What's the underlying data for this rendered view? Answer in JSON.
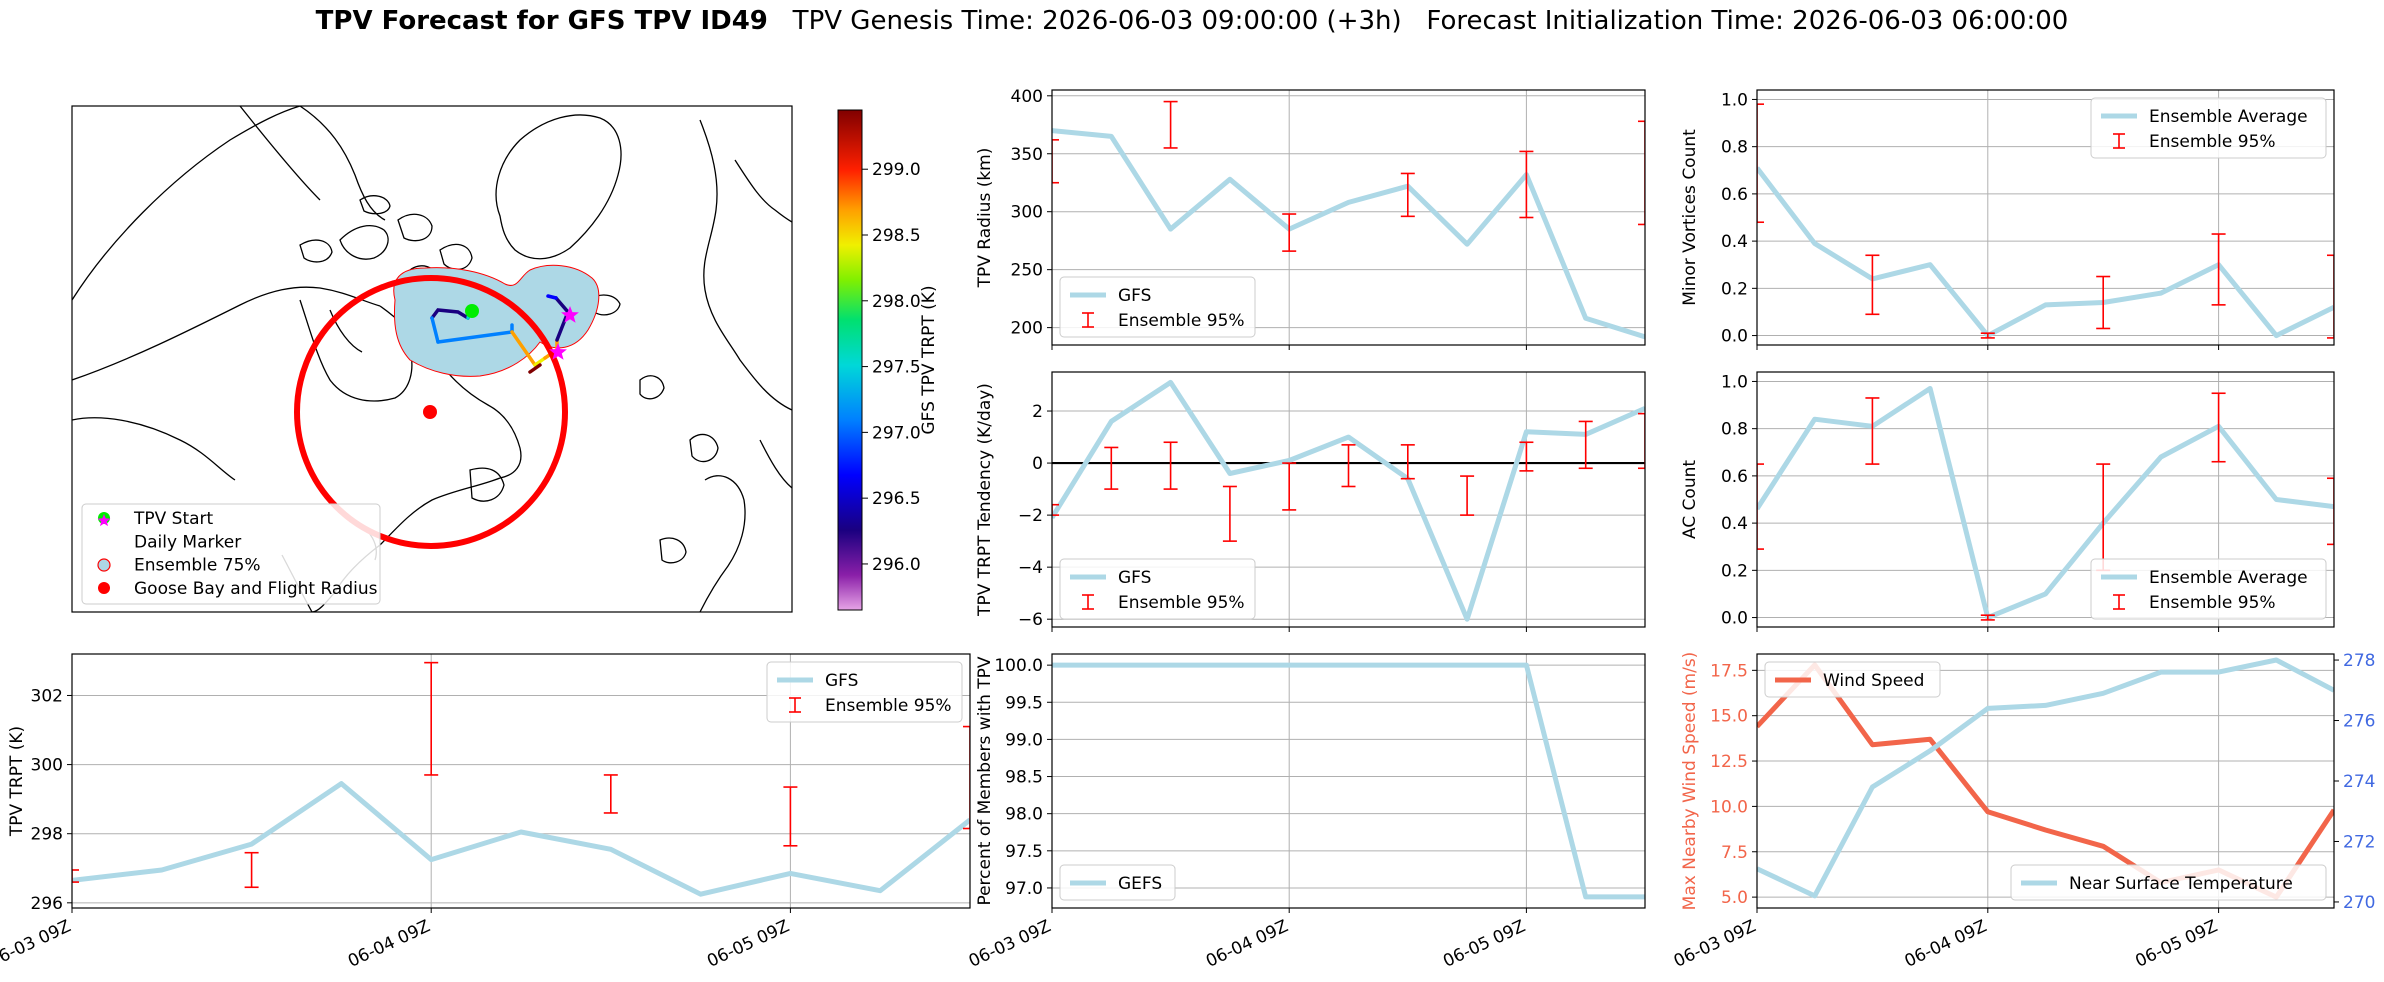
{
  "figure": {
    "title_bold": "TPV Forecast for GFS TPV ID49",
    "title_rest": "   TPV Genesis Time: 2026-06-03 09:00:00 (+3h)   Forecast Initialization Time: 2026-06-03 06:00:00"
  },
  "colors": {
    "ensemble_line": "#add8e6",
    "error_bar": "#ff0000",
    "wind": "#f2654a",
    "temp_axis": "#4169e1",
    "flight_circle": "#ff0000",
    "tpv_start": "#00ee00",
    "daily_marker": "#ff00ff"
  },
  "chart_data": [
    {
      "id": "map",
      "type": "map",
      "legend": [
        {
          "label": "TPV Start",
          "marker": "green-dot"
        },
        {
          "label": "Daily Marker",
          "marker": "magenta-star"
        },
        {
          "label": "Ensemble 75%",
          "marker": "hollow-circle"
        },
        {
          "label": "Goose Bay and Flight Radius",
          "marker": "red-dot"
        }
      ],
      "colorbar": {
        "label": "GFS TPV TRPT (K)",
        "ticks": [
          "299.0",
          "298.5",
          "298.0",
          "297.5",
          "297.0",
          "296.5",
          "296.0"
        ],
        "range": [
          295.65,
          299.45
        ]
      }
    },
    {
      "id": "radius",
      "type": "line",
      "ylabel": "TPV Radius (km)",
      "ylim": [
        185,
        405
      ],
      "yticks": [
        "200",
        "250",
        "300",
        "350",
        "400"
      ],
      "x": [
        0,
        1,
        2,
        3,
        4,
        5,
        6,
        7,
        8,
        9,
        10
      ],
      "series": [
        {
          "name": "GFS",
          "values": [
            370,
            365,
            285,
            328,
            285,
            308,
            322,
            272,
            332,
            208,
            192
          ]
        }
      ],
      "error_bars": [
        {
          "x": 0,
          "low": 325,
          "high": 362
        },
        {
          "x": 2,
          "low": 355,
          "high": 395
        },
        {
          "x": 4,
          "low": 266,
          "high": 298
        },
        {
          "x": 6,
          "low": 296,
          "high": 333
        },
        {
          "x": 8,
          "low": 295,
          "high": 352
        },
        {
          "x": 10,
          "low": 289,
          "high": 378
        }
      ],
      "legend": [
        "GFS",
        "Ensemble 95%"
      ],
      "legend_loc": "lower-left"
    },
    {
      "id": "minor",
      "type": "line",
      "ylabel": "Minor Vortices Count",
      "ylim": [
        -0.04,
        1.04
      ],
      "yticks": [
        "0.0",
        "0.2",
        "0.4",
        "0.6",
        "0.8",
        "1.0"
      ],
      "x": [
        0,
        1,
        2,
        3,
        4,
        5,
        6,
        7,
        8,
        9,
        10
      ],
      "series": [
        {
          "name": "Ensemble Average",
          "values": [
            0.71,
            0.39,
            0.24,
            0.3,
            0.0,
            0.13,
            0.14,
            0.18,
            0.3,
            0.0,
            0.12
          ]
        }
      ],
      "error_bars": [
        {
          "x": 0,
          "low": 0.48,
          "high": 0.98
        },
        {
          "x": 2,
          "low": 0.09,
          "high": 0.34
        },
        {
          "x": 4,
          "low": -0.01,
          "high": 0.01
        },
        {
          "x": 6,
          "low": 0.03,
          "high": 0.25
        },
        {
          "x": 8,
          "low": 0.13,
          "high": 0.43
        },
        {
          "x": 10,
          "low": -0.01,
          "high": 0.34
        }
      ],
      "legend": [
        "Ensemble Average",
        "Ensemble 95%"
      ],
      "legend_loc": "top-right"
    },
    {
      "id": "tendency",
      "type": "line",
      "ylabel": "TPV TRPT Tendency (K/day)",
      "ylim": [
        -6.3,
        3.5
      ],
      "yticks": [
        "−6",
        "−4",
        "−2",
        "0",
        "2"
      ],
      "zero_line": true,
      "x": [
        0,
        1,
        2,
        3,
        4,
        5,
        6,
        7,
        8,
        9,
        10
      ],
      "series": [
        {
          "name": "GFS",
          "values": [
            -2.1,
            1.6,
            3.1,
            -0.4,
            0.1,
            1.0,
            -0.6,
            -6.0,
            1.2,
            1.1,
            2.1
          ]
        }
      ],
      "error_bars": [
        {
          "x": 0,
          "low": -2.0,
          "high": -1.6
        },
        {
          "x": 1,
          "low": -1.0,
          "high": 0.6
        },
        {
          "x": 2,
          "low": -1.0,
          "high": 0.8
        },
        {
          "x": 3,
          "low": -3.0,
          "high": -0.9
        },
        {
          "x": 4,
          "low": -1.8,
          "high": 0.0
        },
        {
          "x": 5,
          "low": -0.9,
          "high": 0.7
        },
        {
          "x": 6,
          "low": -0.6,
          "high": 0.7
        },
        {
          "x": 7,
          "low": -2.0,
          "high": -0.5
        },
        {
          "x": 8,
          "low": -0.3,
          "high": 0.8
        },
        {
          "x": 9,
          "low": -0.2,
          "high": 1.6
        },
        {
          "x": 10,
          "low": -0.2,
          "high": 1.9
        }
      ],
      "legend": [
        "GFS",
        "Ensemble 95%"
      ],
      "legend_loc": "lower-left"
    },
    {
      "id": "ac",
      "type": "line",
      "ylabel": "AC Count",
      "ylim": [
        -0.04,
        1.04
      ],
      "yticks": [
        "0.0",
        "0.2",
        "0.4",
        "0.6",
        "0.8",
        "1.0"
      ],
      "x": [
        0,
        1,
        2,
        3,
        4,
        5,
        6,
        7,
        8,
        9,
        10
      ],
      "series": [
        {
          "name": "Ensemble Average",
          "values": [
            0.46,
            0.84,
            0.81,
            0.97,
            0.0,
            0.1,
            0.4,
            0.68,
            0.81,
            0.5,
            0.47
          ]
        }
      ],
      "error_bars": [
        {
          "x": 0,
          "low": 0.29,
          "high": 0.65
        },
        {
          "x": 2,
          "low": 0.65,
          "high": 0.93
        },
        {
          "x": 4,
          "low": -0.01,
          "high": 0.01
        },
        {
          "x": 6,
          "low": 0.2,
          "high": 0.65
        },
        {
          "x": 8,
          "low": 0.66,
          "high": 0.95
        },
        {
          "x": 10,
          "low": 0.31,
          "high": 0.59
        }
      ],
      "legend": [
        "Ensemble Average",
        "Ensemble 95%"
      ],
      "legend_loc": "lower-right"
    },
    {
      "id": "trpt",
      "type": "line",
      "ylabel": "TPV TRPT (K)",
      "ylim": [
        295.85,
        303.2
      ],
      "yticks": [
        "296",
        "298",
        "300",
        "302"
      ],
      "xticks": [
        "06-03 09Z",
        "06-04 09Z",
        "06-05 09Z"
      ],
      "xtick_pos": [
        0,
        4,
        8
      ],
      "x": [
        0,
        1,
        2,
        3,
        4,
        5,
        6,
        7,
        8,
        9,
        10
      ],
      "series": [
        {
          "name": "GFS",
          "values": [
            296.65,
            296.95,
            297.7,
            299.45,
            297.25,
            298.05,
            297.55,
            296.25,
            296.85,
            296.35,
            298.4
          ]
        }
      ],
      "error_bars": [
        {
          "x": 0,
          "low": 296.6,
          "high": 296.95
        },
        {
          "x": 2,
          "low": 296.45,
          "high": 297.45
        },
        {
          "x": 4,
          "low": 299.7,
          "high": 302.95
        },
        {
          "x": 6,
          "low": 298.6,
          "high": 299.7
        },
        {
          "x": 8,
          "low": 297.65,
          "high": 299.35
        },
        {
          "x": 10,
          "low": 298.15,
          "high": 301.1
        }
      ],
      "legend": [
        "GFS",
        "Ensemble 95%"
      ],
      "legend_loc": "top-right"
    },
    {
      "id": "members",
      "type": "line",
      "ylabel": "Percent of Members with TPV",
      "ylim": [
        96.73,
        100.15
      ],
      "yticks": [
        "97.0",
        "97.5",
        "98.0",
        "98.5",
        "99.0",
        "99.5",
        "100.0"
      ],
      "xticks": [
        "06-03 09Z",
        "06-04 09Z",
        "06-05 09Z"
      ],
      "xtick_pos": [
        0,
        4,
        8
      ],
      "x": [
        0,
        1,
        2,
        3,
        4,
        5,
        6,
        7,
        8,
        9,
        10
      ],
      "series": [
        {
          "name": "GEFS",
          "values": [
            100,
            100,
            100,
            100,
            100,
            100,
            100,
            100,
            100,
            96.88,
            96.88
          ]
        }
      ],
      "legend": [
        "GEFS"
      ],
      "legend_loc": "lower-left"
    },
    {
      "id": "wind_temp",
      "type": "line",
      "ylabel_left": "Max Nearby Wind Speed (m/s)",
      "ylabel_right": "Near Surface Temperature (K)",
      "ylim_left": [
        4.4,
        18.4
      ],
      "ylim_right": [
        269.8,
        278.2
      ],
      "yticks_left": [
        "5.0",
        "7.5",
        "10.0",
        "12.5",
        "15.0",
        "17.5"
      ],
      "yticks_right": [
        "270",
        "272",
        "274",
        "276",
        "278"
      ],
      "xticks": [
        "06-03 09Z",
        "06-04 09Z",
        "06-05 09Z"
      ],
      "xtick_pos": [
        0,
        4,
        8
      ],
      "x": [
        0,
        1,
        2,
        3,
        4,
        5,
        6,
        7,
        8,
        9,
        10
      ],
      "series": [
        {
          "name": "Wind Speed",
          "axis": "left",
          "values": [
            14.4,
            17.8,
            13.4,
            13.7,
            9.7,
            8.7,
            7.8,
            5.8,
            6.5,
            5.0,
            9.8
          ]
        },
        {
          "name": "Near Surface Temperature",
          "axis": "right",
          "values": [
            271.1,
            270.2,
            273.8,
            275.0,
            276.4,
            276.5,
            276.9,
            277.6,
            277.6,
            278.0,
            277.0
          ]
        }
      ],
      "legend_left": "top-left",
      "legend_right": "lower-right"
    }
  ]
}
